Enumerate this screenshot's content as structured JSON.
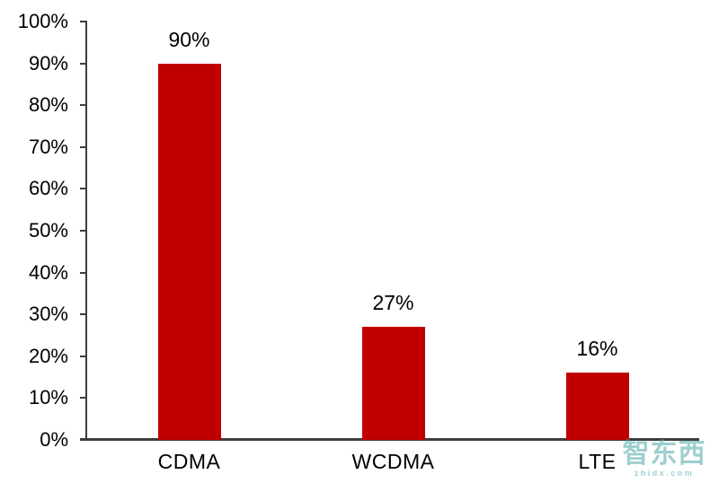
{
  "chart_data": {
    "type": "bar",
    "title": "",
    "xlabel": "",
    "ylabel": "",
    "categories": [
      "CDMA",
      "WCDMA",
      "LTE"
    ],
    "values": [
      90,
      27,
      16
    ],
    "data_labels": [
      "90%",
      "27%",
      "16%"
    ],
    "ylim": [
      0,
      100
    ],
    "y_tick_step": 10,
    "y_tick_suffix": "%",
    "y_tick_labels": [
      "0%",
      "10%",
      "20%",
      "30%",
      "40%",
      "50%",
      "60%",
      "70%",
      "80%",
      "90%",
      "100%"
    ],
    "grid": "off",
    "legend": "none",
    "bar_color": "#c00000",
    "axis_color": "#3d3d3d",
    "text_color": "#000000"
  },
  "watermark": {
    "logo_text": "智东西",
    "site_text": "zhidx.com",
    "color": "#4fa8a8"
  }
}
